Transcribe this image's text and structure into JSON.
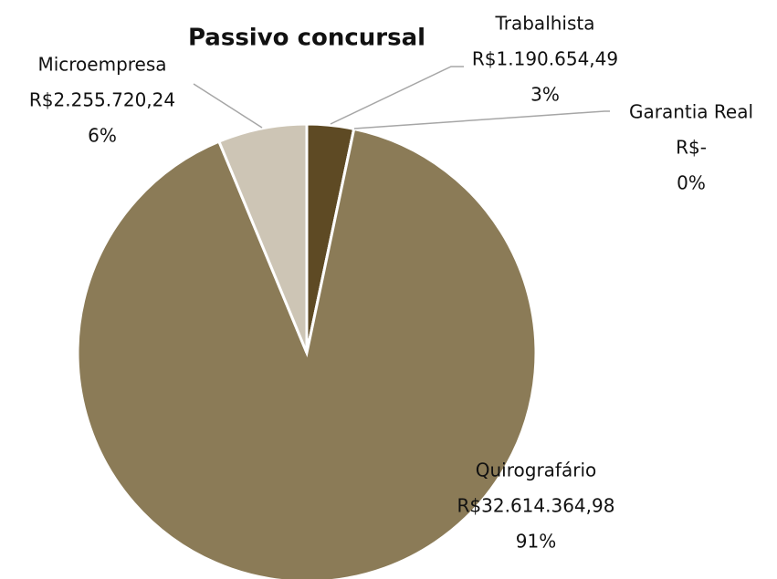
{
  "chart_data": {
    "type": "pie",
    "title": "Passivo concursal",
    "categories": [
      "Trabalhista",
      "Garantia Real",
      "Quirografário",
      "Microempresa"
    ],
    "values": [
      1190654.49,
      0,
      32614364.98,
      2255720.24
    ],
    "value_labels": [
      "R$1.190.654,49",
      "R$-",
      "R$32.614.364,98",
      "R$2.255.720,24"
    ],
    "percent_labels": [
      "3%",
      "0%",
      "91%",
      "6%"
    ],
    "colors": [
      "#5e4a24",
      "#76653f",
      "#8b7b57",
      "#cdc5b5"
    ]
  }
}
